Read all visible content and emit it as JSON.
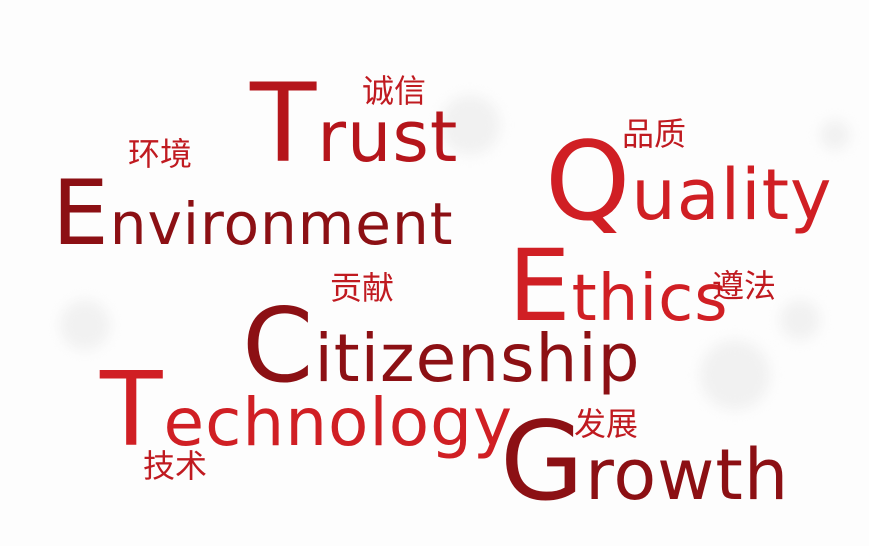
{
  "words": {
    "trust": "Trust",
    "environment": "Environment",
    "quality": "Quality",
    "ethics": "Ethics",
    "citizenship": "Citizenship",
    "technology": "Technology",
    "growth": "Growth"
  },
  "chinese": {
    "integrity": "诚信",
    "environment": "环境",
    "quality": "品质",
    "contribution": "贡献",
    "compliance": "遵法",
    "development": "发展",
    "technology": "技术"
  },
  "colors": {
    "dark_red": "#8c1014",
    "medium_red": "#b5151b",
    "bright_red": "#d01f24"
  }
}
